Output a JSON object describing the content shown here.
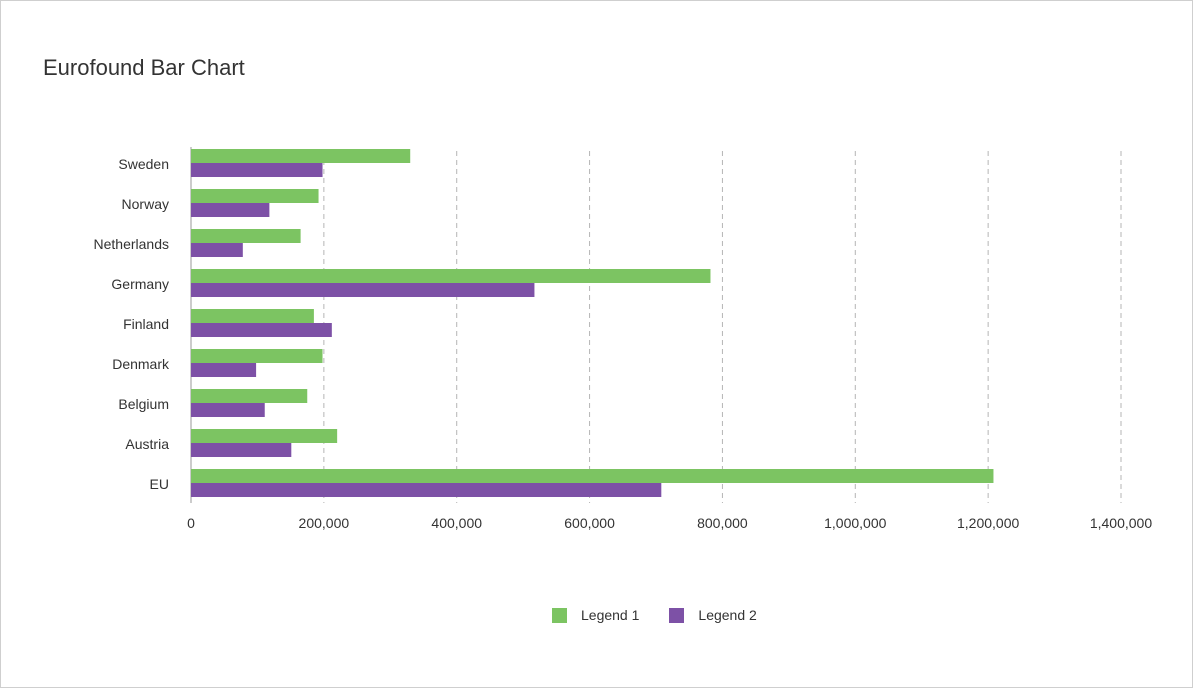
{
  "chart_data": {
    "type": "bar",
    "orientation": "horizontal",
    "title": "Eurofound Bar Chart",
    "xlabel": "",
    "ylabel": "",
    "categories": [
      "Sweden",
      "Norway",
      "Netherlands",
      "Germany",
      "Finland",
      "Denmark",
      "Belgium",
      "Austria",
      "EU"
    ],
    "series": [
      {
        "name": "Legend 1",
        "color": "#7cc462",
        "values": [
          330000,
          192000,
          165000,
          782000,
          185000,
          198000,
          175000,
          220000,
          1208000
        ]
      },
      {
        "name": "Legend 2",
        "color": "#7d51a6",
        "values": [
          198000,
          118000,
          78000,
          517000,
          212000,
          98000,
          111000,
          151000,
          708000
        ]
      }
    ],
    "xlim": [
      0,
      1400000
    ],
    "x_ticks": [
      "0",
      "200,000",
      "400,000",
      "600,000",
      "800,000",
      "1,000,000",
      "1,200,000",
      "1,400,000"
    ],
    "grid": "vertical-dashed",
    "legend_position": "bottom"
  }
}
